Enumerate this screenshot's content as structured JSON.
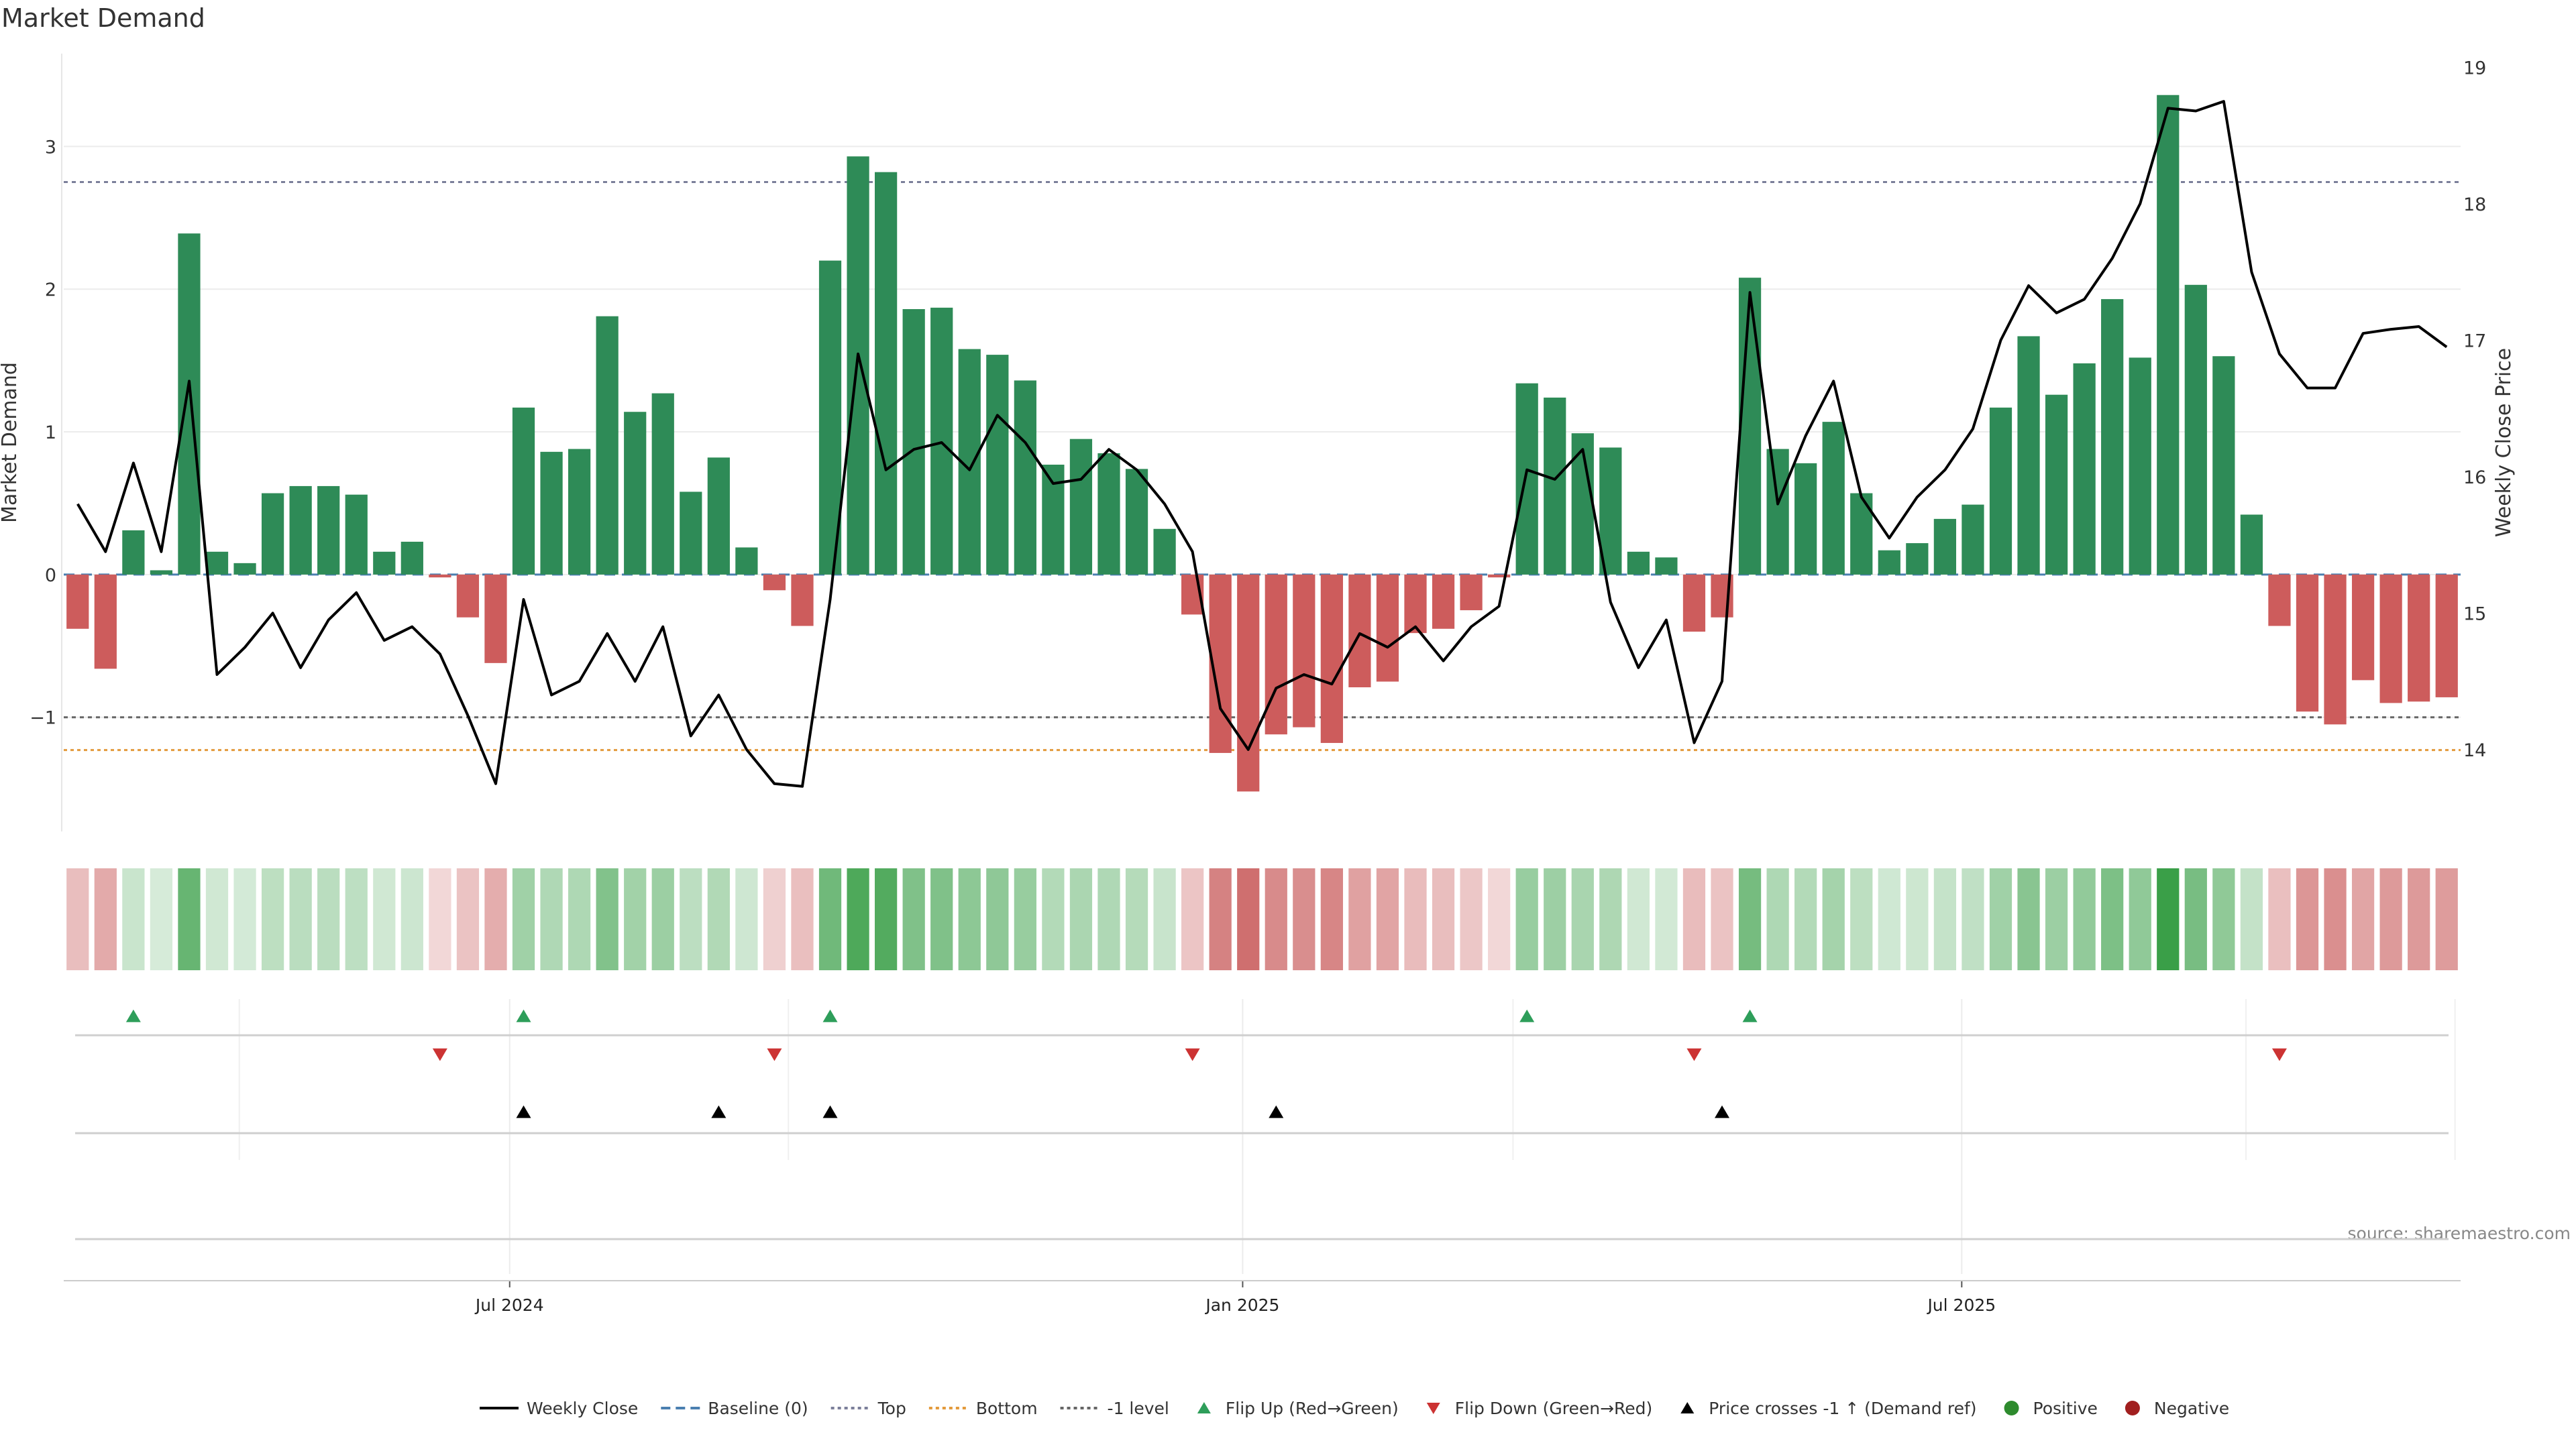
{
  "chart_data": {
    "type": "bar",
    "title": "Market Demand",
    "ylabel_left": "Market Demand",
    "ylabel_right": "Weekly Close Price",
    "source": "source: sharemaestro.com",
    "ylim_left": [
      -1.8,
      3.65
    ],
    "ylim_right": [
      13.4,
      19.1
    ],
    "yticks_left": [
      {
        "value": 3,
        "label": "3"
      },
      {
        "value": 2,
        "label": "2"
      },
      {
        "value": 1,
        "label": "1"
      },
      {
        "value": 0,
        "label": "0"
      },
      {
        "value": -1,
        "label": "−1"
      }
    ],
    "yticks_right": [
      {
        "value": 19,
        "label": "19"
      },
      {
        "value": 18,
        "label": "18"
      },
      {
        "value": 17,
        "label": "17"
      },
      {
        "value": 16,
        "label": "16"
      },
      {
        "value": 15,
        "label": "15"
      },
      {
        "value": 14,
        "label": "14"
      }
    ],
    "x_ticks": [
      {
        "index": 15.5,
        "label": "Jul 2024"
      },
      {
        "index": 41.8,
        "label": "Jan 2025"
      },
      {
        "index": 67.6,
        "label": "Jul 2025"
      }
    ],
    "reference_lines": [
      {
        "name": "Top",
        "value": 2.75,
        "color": "#7b7f9a",
        "dash": "6,6"
      },
      {
        "name": "-1 level",
        "value": -1.0,
        "color": "#666666",
        "dash": "6,6"
      },
      {
        "name": "Bottom",
        "value": -1.23,
        "color": "#e39a3c",
        "dash": "5,5"
      },
      {
        "name": "Baseline (0)",
        "value": 0,
        "color": "#4a7fb0",
        "dash": "16,10"
      }
    ],
    "demand": [
      -0.38,
      -0.66,
      0.31,
      0.03,
      2.39,
      0.16,
      0.08,
      0.57,
      0.62,
      0.62,
      0.56,
      0.16,
      0.23,
      -0.02,
      -0.3,
      -0.62,
      1.17,
      0.86,
      0.88,
      1.81,
      1.14,
      1.27,
      0.58,
      0.82,
      0.19,
      -0.11,
      -0.36,
      2.2,
      2.93,
      2.82,
      1.86,
      1.87,
      1.58,
      1.54,
      1.36,
      0.77,
      0.95,
      0.85,
      0.74,
      0.32,
      -0.28,
      -1.25,
      -1.52,
      -1.12,
      -1.07,
      -1.18,
      -0.79,
      -0.75,
      -0.41,
      -0.38,
      -0.25,
      -0.02,
      1.34,
      1.24,
      0.99,
      0.89,
      0.16,
      0.12,
      -0.4,
      -0.3,
      2.08,
      0.88,
      0.78,
      1.07,
      0.57,
      0.17,
      0.22,
      0.39,
      0.49,
      1.17,
      1.67,
      1.26,
      1.48,
      1.93,
      1.52,
      3.36,
      2.03,
      1.53,
      0.42,
      -0.36,
      -0.96,
      -1.05,
      -0.74,
      -0.9,
      -0.89,
      -0.86
    ],
    "weekly_close": [
      15.8,
      15.45,
      16.1,
      15.45,
      16.7,
      14.55,
      14.75,
      15.0,
      14.6,
      14.95,
      15.15,
      14.8,
      14.9,
      14.7,
      14.25,
      13.75,
      15.1,
      14.4,
      14.5,
      14.85,
      14.5,
      14.9,
      14.1,
      14.4,
      14.0,
      13.75,
      13.73,
      15.1,
      16.9,
      16.05,
      16.2,
      16.25,
      16.05,
      16.45,
      16.25,
      15.95,
      15.98,
      16.2,
      16.05,
      15.8,
      15.45,
      14.3,
      14.0,
      14.45,
      14.55,
      14.48,
      14.85,
      14.75,
      14.9,
      14.65,
      14.9,
      15.05,
      16.05,
      15.98,
      16.2,
      15.08,
      14.6,
      14.95,
      14.05,
      14.5,
      17.35,
      15.8,
      16.3,
      16.7,
      15.85,
      15.55,
      15.85,
      16.05,
      16.35,
      17.0,
      17.4,
      17.2,
      17.3,
      17.6,
      18.0,
      18.7,
      18.68,
      18.75,
      17.5,
      16.9,
      16.65,
      16.65,
      17.05,
      17.08,
      17.1,
      16.95
    ],
    "flip_up_indices": [
      2,
      16,
      27,
      52,
      60
    ],
    "flip_down_indices": [
      13,
      25,
      40,
      58,
      79
    ],
    "price_cross_indices": [
      16,
      23,
      27,
      43,
      59
    ],
    "legend": [
      {
        "kind": "line",
        "label": "Weekly Close",
        "color": "#000000"
      },
      {
        "kind": "dash",
        "label": "Baseline (0)",
        "color": "#4a7fb0"
      },
      {
        "kind": "dot",
        "label": "Top",
        "color": "#7b7f9a"
      },
      {
        "kind": "dot",
        "label": "Bottom",
        "color": "#e39a3c"
      },
      {
        "kind": "dot",
        "label": "-1 level",
        "color": "#666666"
      },
      {
        "kind": "tri-up",
        "label": "Flip Up (Red→Green)",
        "color": "#2e9e5a"
      },
      {
        "kind": "tri-down",
        "label": "Flip Down (Green→Red)",
        "color": "#cc3333"
      },
      {
        "kind": "tri-up",
        "label": "Price crosses -1 ↑ (Demand ref)",
        "color": "#000000"
      },
      {
        "kind": "circle",
        "label": "Positive",
        "color": "#2e8b2e"
      },
      {
        "kind": "circle",
        "label": "Negative",
        "color": "#a11f1f"
      }
    ],
    "colors": {
      "positive_bar": "#2e8b57",
      "negative_bar": "#cd5c5c",
      "flip_up": "#2e9e5a",
      "flip_down": "#cc3333",
      "price_line": "#000000"
    }
  }
}
